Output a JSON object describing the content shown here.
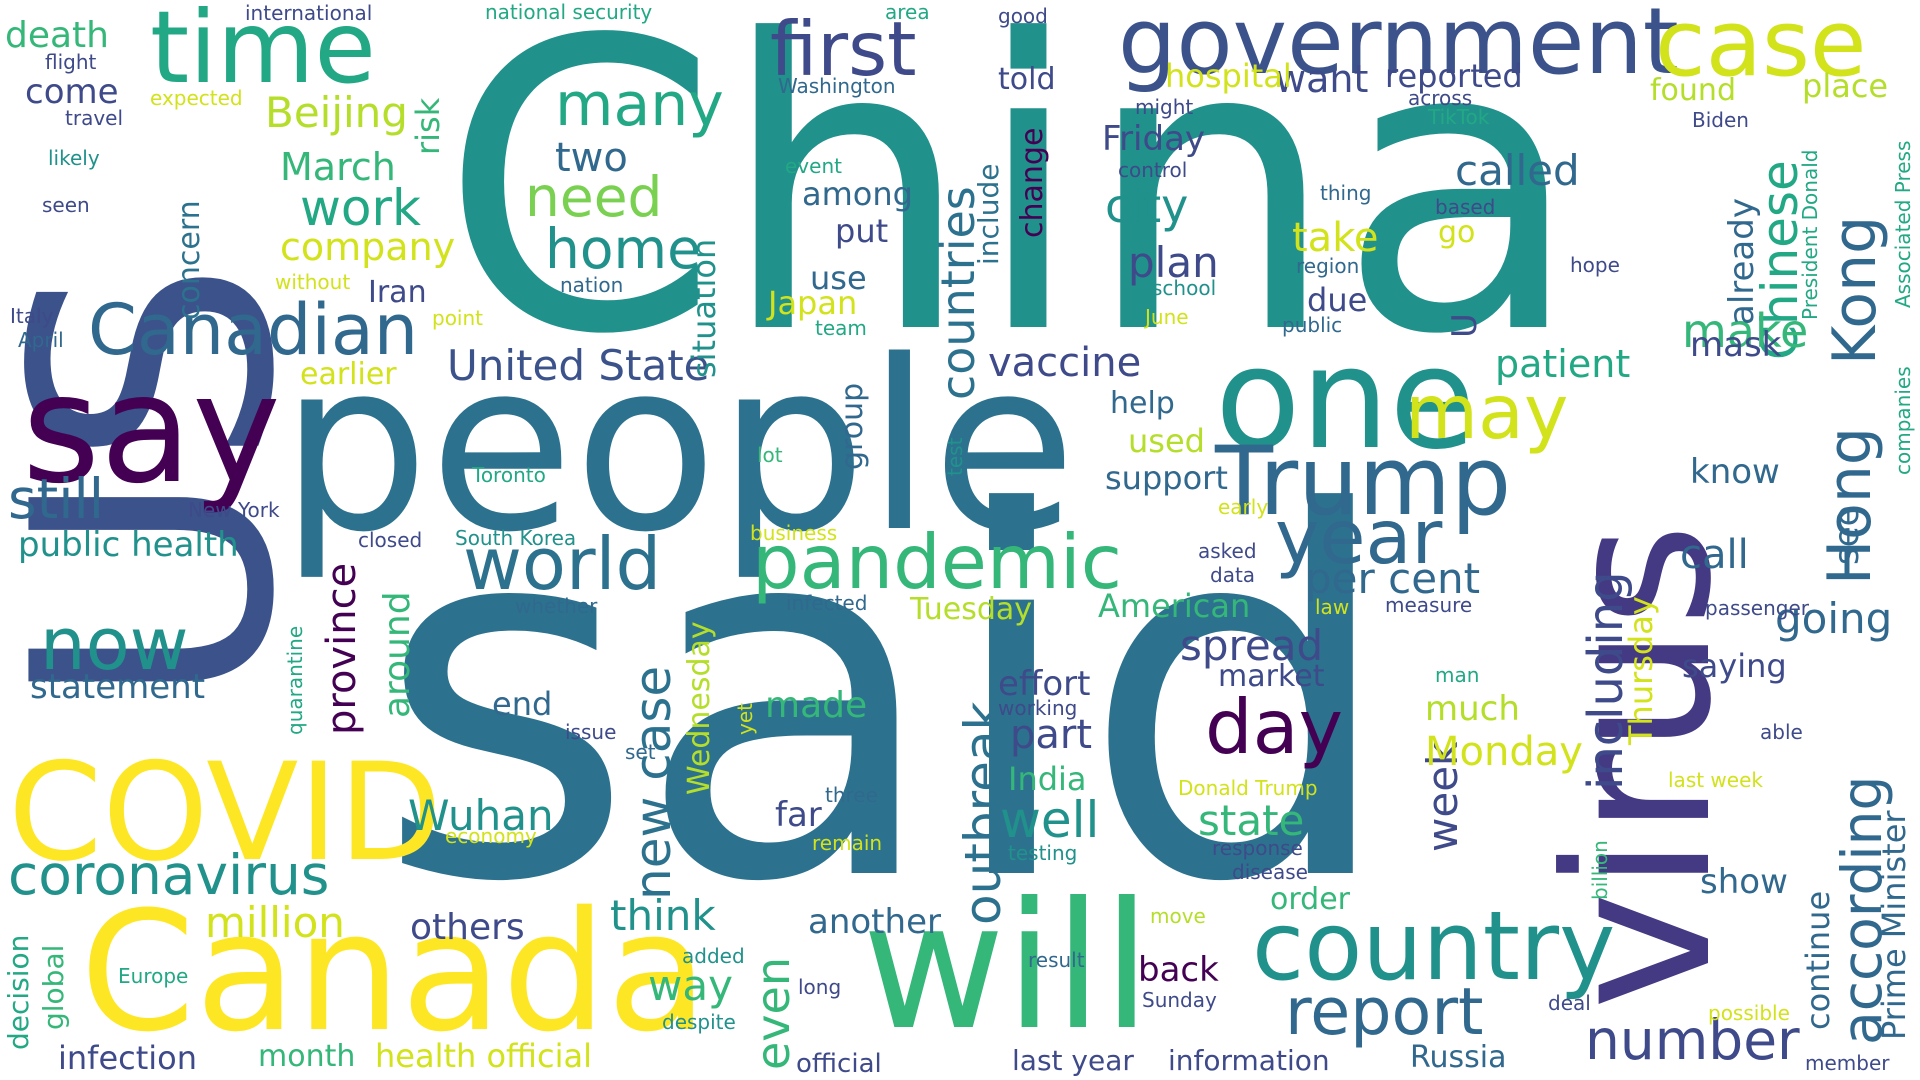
{
  "words": [
    {
      "text": "China",
      "color": "#21918c"
    },
    {
      "text": "said",
      "color": "#2c728e"
    },
    {
      "text": "US",
      "color": "#3b528b"
    },
    {
      "text": "people",
      "color": "#2c728e"
    },
    {
      "text": "virus",
      "color": "#443983"
    },
    {
      "text": "say",
      "color": "#440154"
    },
    {
      "text": "will",
      "color": "#35b779"
    },
    {
      "text": "Canada",
      "color": "#fde725"
    },
    {
      "text": "COVID",
      "color": "#fde725"
    },
    {
      "text": "one",
      "color": "#21918c"
    },
    {
      "text": "government",
      "color": "#3b528b"
    },
    {
      "text": "time",
      "color": "#22a884"
    },
    {
      "text": "case",
      "color": "#d2e21b"
    },
    {
      "text": "country",
      "color": "#21918c"
    },
    {
      "text": "Trump",
      "color": "#31688e"
    },
    {
      "text": "Canadian",
      "color": "#31688e"
    },
    {
      "text": "pandemic",
      "color": "#35b779"
    },
    {
      "text": "first",
      "color": "#3e4a89"
    },
    {
      "text": "many",
      "color": "#22a884"
    },
    {
      "text": "world",
      "color": "#2c728e"
    },
    {
      "text": "year",
      "color": "#31688e"
    },
    {
      "text": "now",
      "color": "#21918c"
    },
    {
      "text": "coronavirus",
      "color": "#21918c"
    },
    {
      "text": "day",
      "color": "#440154"
    },
    {
      "text": "may",
      "color": "#d2e21b"
    },
    {
      "text": "report",
      "color": "#31688e"
    },
    {
      "text": "number",
      "color": "#3e4a89"
    },
    {
      "text": "Hong",
      "color": "#31688e"
    },
    {
      "text": "Kong",
      "color": "#31688e"
    },
    {
      "text": "according",
      "color": "#31688e"
    },
    {
      "text": "Chinese",
      "color": "#22a884"
    },
    {
      "text": "home",
      "color": "#21918c"
    },
    {
      "text": "need",
      "color": "#7ad151"
    },
    {
      "text": "still",
      "color": "#31688e"
    },
    {
      "text": "work",
      "color": "#22a884"
    },
    {
      "text": "countries",
      "color": "#2c728e"
    },
    {
      "text": "outbreak",
      "color": "#2c728e"
    },
    {
      "text": "new case",
      "color": "#2c728e"
    },
    {
      "text": "including",
      "color": "#3e4a89"
    },
    {
      "text": "United State",
      "color": "#3b528b"
    },
    {
      "text": "Beijing",
      "color": "#b5de2b"
    },
    {
      "text": "March",
      "color": "#35b779"
    },
    {
      "text": "company",
      "color": "#d2e21b"
    },
    {
      "text": "two",
      "color": "#31688e"
    },
    {
      "text": "called",
      "color": "#31688e"
    },
    {
      "text": "city",
      "color": "#21918c"
    },
    {
      "text": "plan",
      "color": "#3e4a89"
    },
    {
      "text": "vaccine",
      "color": "#3e4a89"
    },
    {
      "text": "patient",
      "color": "#22a884"
    },
    {
      "text": "make",
      "color": "#35b779"
    },
    {
      "text": "take",
      "color": "#d2e21b"
    },
    {
      "text": "want",
      "color": "#3e4a89"
    },
    {
      "text": "reported",
      "color": "#3e4a89"
    },
    {
      "text": "found",
      "color": "#b5de2b"
    },
    {
      "text": "place",
      "color": "#b5de2b"
    },
    {
      "text": "Friday",
      "color": "#3e4a89"
    },
    {
      "text": "hospital",
      "color": "#d2e21b"
    },
    {
      "text": "told",
      "color": "#3e4a89"
    },
    {
      "text": "death",
      "color": "#35b779"
    },
    {
      "text": "come",
      "color": "#3e4a89"
    },
    {
      "text": "flight",
      "color": "#3e4a89"
    },
    {
      "text": "travel",
      "color": "#3e4a89"
    },
    {
      "text": "likely",
      "color": "#21918c"
    },
    {
      "text": "seen",
      "color": "#3e4a89"
    },
    {
      "text": "international",
      "color": "#3e4a89"
    },
    {
      "text": "expected",
      "color": "#d2e21b"
    },
    {
      "text": "risk",
      "color": "#35b779"
    },
    {
      "text": "concern",
      "color": "#2c728e"
    },
    {
      "text": "without",
      "color": "#d2e21b"
    },
    {
      "text": "Iran",
      "color": "#3e4a89"
    },
    {
      "text": "Italy",
      "color": "#3e4a89"
    },
    {
      "text": "April",
      "color": "#31688e"
    },
    {
      "text": "point",
      "color": "#d2e21b"
    },
    {
      "text": "earlier",
      "color": "#d2e21b"
    },
    {
      "text": "public health",
      "color": "#21918c"
    },
    {
      "text": "New York",
      "color": "#3e4a89"
    },
    {
      "text": "closed",
      "color": "#3e4a89"
    },
    {
      "text": "South Korea",
      "color": "#21918c"
    },
    {
      "text": "Toronto",
      "color": "#22a884"
    },
    {
      "text": "statement",
      "color": "#31688e"
    },
    {
      "text": "province",
      "color": "#440154"
    },
    {
      "text": "around",
      "color": "#35b779"
    },
    {
      "text": "quarantine",
      "color": "#22a884"
    },
    {
      "text": "decision",
      "color": "#22a884"
    },
    {
      "text": "global",
      "color": "#35b779"
    },
    {
      "text": "million",
      "color": "#d2e21b"
    },
    {
      "text": "Wuhan",
      "color": "#21918c"
    },
    {
      "text": "others",
      "color": "#3e4a89"
    },
    {
      "text": "think",
      "color": "#21918c"
    },
    {
      "text": "way",
      "color": "#35b779"
    },
    {
      "text": "even",
      "color": "#35b779"
    },
    {
      "text": "infection",
      "color": "#3e4a89"
    },
    {
      "text": "month",
      "color": "#35b779"
    },
    {
      "text": "health official",
      "color": "#d2e21b"
    },
    {
      "text": "economy",
      "color": "#d2e21b"
    },
    {
      "text": "Europe",
      "color": "#22a884"
    },
    {
      "text": "added",
      "color": "#21918c"
    },
    {
      "text": "despite",
      "color": "#21918c"
    },
    {
      "text": "national security",
      "color": "#22a884"
    },
    {
      "text": "Washington",
      "color": "#31688e"
    },
    {
      "text": "event",
      "color": "#22a884"
    },
    {
      "text": "among",
      "color": "#31688e"
    },
    {
      "text": "put",
      "color": "#3e4a89"
    },
    {
      "text": "use",
      "color": "#31688e"
    },
    {
      "text": "nation",
      "color": "#31688e"
    },
    {
      "text": "Japan",
      "color": "#d2e21b"
    },
    {
      "text": "team",
      "color": "#22a884"
    },
    {
      "text": "situation",
      "color": "#21918c"
    },
    {
      "text": "group",
      "color": "#31688e"
    },
    {
      "text": "lot",
      "color": "#35b779"
    },
    {
      "text": "test",
      "color": "#21918c"
    },
    {
      "text": "business",
      "color": "#d2e21b"
    },
    {
      "text": "whether",
      "color": "#31688e"
    },
    {
      "text": "infected",
      "color": "#31688e"
    },
    {
      "text": "Tuesday",
      "color": "#b5de2b"
    },
    {
      "text": "American",
      "color": "#35b779"
    },
    {
      "text": "Wednesday",
      "color": "#b5de2b"
    },
    {
      "text": "spread",
      "color": "#3e4a89"
    },
    {
      "text": "market",
      "color": "#3e4a89"
    },
    {
      "text": "effort",
      "color": "#3e4a89"
    },
    {
      "text": "working",
      "color": "#3e4a89"
    },
    {
      "text": "end",
      "color": "#31688e"
    },
    {
      "text": "issue",
      "color": "#3e4a89"
    },
    {
      "text": "set",
      "color": "#31688e"
    },
    {
      "text": "yet",
      "color": "#d2e21b"
    },
    {
      "text": "made",
      "color": "#35b779"
    },
    {
      "text": "part",
      "color": "#3e4a89"
    },
    {
      "text": "India",
      "color": "#35b779"
    },
    {
      "text": "far",
      "color": "#3e4a89"
    },
    {
      "text": "remain",
      "color": "#d2e21b"
    },
    {
      "text": "three",
      "color": "#31688e"
    },
    {
      "text": "testing",
      "color": "#21918c"
    },
    {
      "text": "well",
      "color": "#21918c"
    },
    {
      "text": "state",
      "color": "#35b779"
    },
    {
      "text": "order",
      "color": "#35b779"
    },
    {
      "text": "another",
      "color": "#31688e"
    },
    {
      "text": "move",
      "color": "#b5de2b"
    },
    {
      "text": "result",
      "color": "#31688e"
    },
    {
      "text": "back",
      "color": "#440154"
    },
    {
      "text": "Sunday",
      "color": "#3e4a89"
    },
    {
      "text": "long",
      "color": "#3e4a89"
    },
    {
      "text": "official",
      "color": "#3e4a89"
    },
    {
      "text": "last year",
      "color": "#3e4a89"
    },
    {
      "text": "information",
      "color": "#3e4a89"
    },
    {
      "text": "Russia",
      "color": "#31688e"
    },
    {
      "text": "response",
      "color": "#3e4a89"
    },
    {
      "text": "disease",
      "color": "#3e4a89"
    },
    {
      "text": "Donald Trump",
      "color": "#d2e21b"
    },
    {
      "text": "week",
      "color": "#3e4a89"
    },
    {
      "text": "much",
      "color": "#b5de2b"
    },
    {
      "text": "Monday",
      "color": "#d2e21b"
    },
    {
      "text": "Thursday",
      "color": "#d2e21b"
    },
    {
      "text": "per cent",
      "color": "#31688e"
    },
    {
      "text": "go",
      "color": "#d2e21b"
    },
    {
      "text": "due",
      "color": "#3e4a89"
    },
    {
      "text": "help",
      "color": "#31688e"
    },
    {
      "text": "used",
      "color": "#b5de2b"
    },
    {
      "text": "support",
      "color": "#31688e"
    },
    {
      "text": "early",
      "color": "#d2e21b"
    },
    {
      "text": "asked",
      "color": "#3e4a89"
    },
    {
      "text": "data",
      "color": "#3e4a89"
    },
    {
      "text": "law",
      "color": "#d2e21b"
    },
    {
      "text": "measure",
      "color": "#3e4a89"
    },
    {
      "text": "know",
      "color": "#31688e"
    },
    {
      "text": "mask",
      "color": "#3e4a89"
    },
    {
      "text": "already",
      "color": "#31688e"
    },
    {
      "text": "call",
      "color": "#31688e"
    },
    {
      "text": "saying",
      "color": "#3e4a89"
    },
    {
      "text": "see",
      "color": "#31688e"
    },
    {
      "text": "going",
      "color": "#31688e"
    },
    {
      "text": "passenger",
      "color": "#3e4a89"
    },
    {
      "text": "man",
      "color": "#22a884"
    },
    {
      "text": "able",
      "color": "#3e4a89"
    },
    {
      "text": "deal",
      "color": "#3e4a89"
    },
    {
      "text": "possible",
      "color": "#d2e21b"
    },
    {
      "text": "last week",
      "color": "#d2e21b"
    },
    {
      "text": "show",
      "color": "#31688e"
    },
    {
      "text": "continue",
      "color": "#31688e"
    },
    {
      "text": "Prime Minister",
      "color": "#31688e"
    },
    {
      "text": "billion",
      "color": "#35b779"
    },
    {
      "text": "member",
      "color": "#3e4a89"
    },
    {
      "text": "companies",
      "color": "#22a884"
    },
    {
      "text": "Associated Press",
      "color": "#22a884"
    },
    {
      "text": "President Donald",
      "color": "#22a884"
    },
    {
      "text": "Biden",
      "color": "#3e4a89"
    },
    {
      "text": "hope",
      "color": "#3e4a89"
    },
    {
      "text": "region",
      "color": "#31688e"
    },
    {
      "text": "based",
      "color": "#3e4a89"
    },
    {
      "text": "thing",
      "color": "#31688e"
    },
    {
      "text": "TikTok",
      "color": "#22a884"
    },
    {
      "text": "across",
      "color": "#3e4a89"
    },
    {
      "text": "might",
      "color": "#3e4a89"
    },
    {
      "text": "control",
      "color": "#3e4a89"
    },
    {
      "text": "school",
      "color": "#21918c"
    },
    {
      "text": "June",
      "color": "#d2e21b"
    },
    {
      "text": "public",
      "color": "#31688e"
    },
    {
      "text": "change",
      "color": "#440154"
    },
    {
      "text": "include",
      "color": "#2c728e"
    },
    {
      "text": "area",
      "color": "#22a884"
    },
    {
      "text": "good",
      "color": "#3e4a89"
    },
    {
      "text": "U",
      "color": "#3e4a89"
    }
  ]
}
